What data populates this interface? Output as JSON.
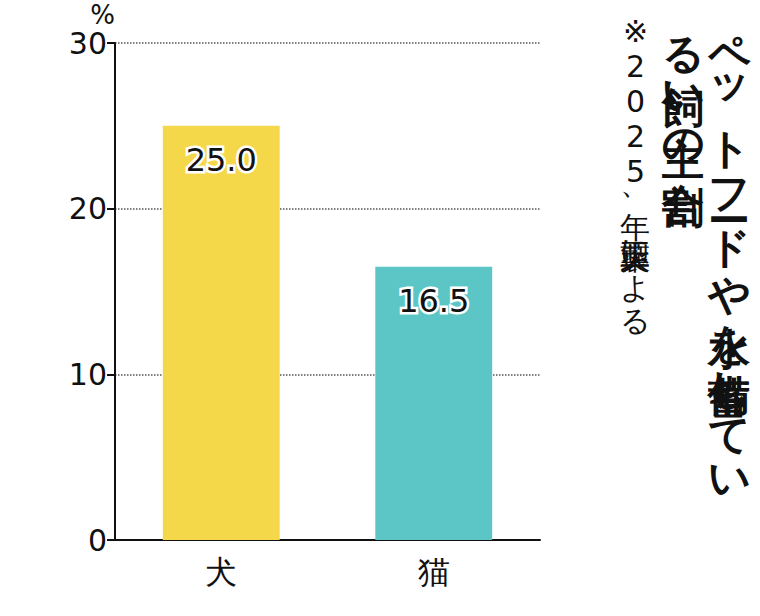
{
  "chart_data": {
    "type": "bar",
    "title": "ペットフードや水を備蓄している飼い主の割合",
    "subtitle": "※2025年、大正製薬による",
    "ylabel": "%",
    "categories": [
      "犬",
      "猫"
    ],
    "values": [
      25.0,
      16.5
    ],
    "value_labels": [
      "25.0",
      "16.5"
    ],
    "colors": [
      "#f5d84a",
      "#5cc6c6"
    ],
    "ylim": [
      0,
      30
    ],
    "yticks": [
      0,
      10,
      20,
      30
    ],
    "grid": true,
    "data_labels": true
  }
}
